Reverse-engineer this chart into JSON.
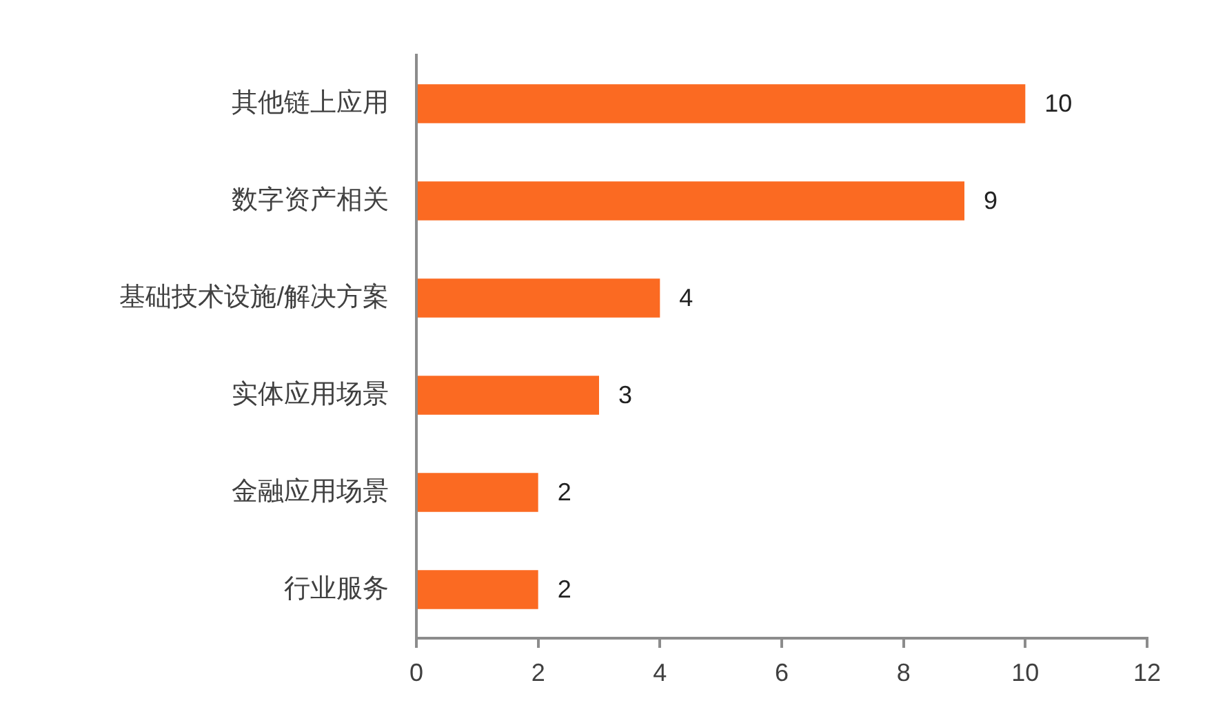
{
  "chart_data": {
    "type": "bar",
    "orientation": "horizontal",
    "categories": [
      "其他链上应用",
      "数字资产相关",
      "基础技术设施/解决方案",
      "实体应用场景",
      "金融应用场景",
      "行业服务"
    ],
    "values": [
      10,
      9,
      4,
      3,
      2,
      2
    ],
    "color": "#fb6a22",
    "xlim": [
      0,
      12
    ],
    "xticks": [
      0,
      2,
      4,
      6,
      8,
      10,
      12
    ],
    "data_labels": true
  }
}
